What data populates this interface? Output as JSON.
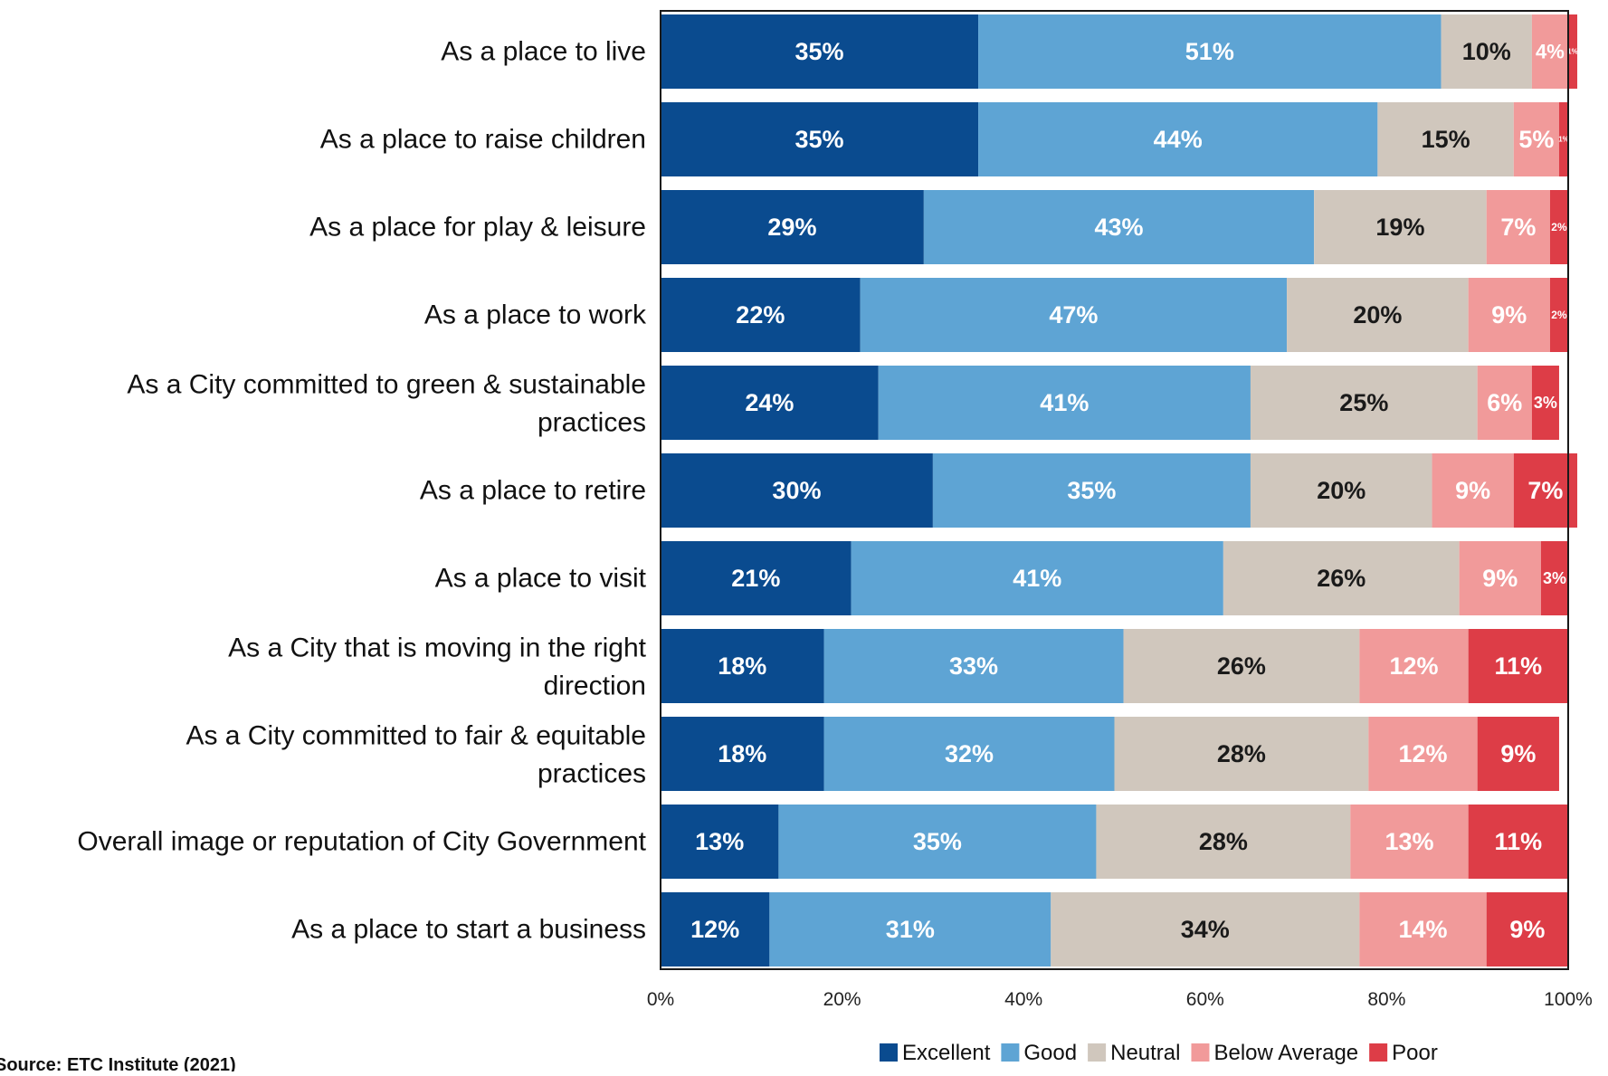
{
  "chart_data": {
    "type": "bar",
    "orientation": "horizontal",
    "stacked": true,
    "title": "",
    "xlabel": "",
    "ylabel": "",
    "xlim": [
      0,
      100
    ],
    "x_ticks": [
      "0%",
      "20%",
      "40%",
      "60%",
      "80%",
      "100%"
    ],
    "grid": false,
    "legend_position": "bottom",
    "categories": [
      "As a place to live",
      "As a place to raise children",
      "As a place for play & leisure",
      "As a place to work",
      "As a City committed to green & sustainable practices",
      "As a place to retire",
      "As a place to visit",
      "As a City that is moving in the right direction",
      "As a City committed to fair & equitable practices",
      "Overall image or reputation of City Government",
      "As a place to start a business"
    ],
    "series": [
      {
        "name": "Excellent",
        "color": "#0a4b8f",
        "label_color": "#ffffff",
        "values": [
          35,
          35,
          29,
          22,
          24,
          30,
          21,
          18,
          18,
          13,
          12
        ]
      },
      {
        "name": "Good",
        "color": "#5ea4d4",
        "label_color": "#ffffff",
        "values": [
          51,
          44,
          43,
          47,
          41,
          35,
          41,
          33,
          32,
          35,
          31
        ]
      },
      {
        "name": "Neutral",
        "color": "#d0c7bd",
        "label_color": "#1a1a1a",
        "values": [
          10,
          15,
          19,
          20,
          25,
          20,
          26,
          26,
          28,
          28,
          34
        ]
      },
      {
        "name": "Below Average",
        "color": "#f19a9a",
        "label_color": "#ffffff",
        "values": [
          4,
          5,
          7,
          9,
          6,
          9,
          9,
          12,
          12,
          13,
          14
        ]
      },
      {
        "name": "Poor",
        "color": "#dd3d47",
        "label_color": "#ffffff",
        "values": [
          1,
          1,
          2,
          2,
          3,
          7,
          3,
          11,
          9,
          11,
          9
        ]
      }
    ]
  },
  "source": "Source: ETC Institute (2021)"
}
